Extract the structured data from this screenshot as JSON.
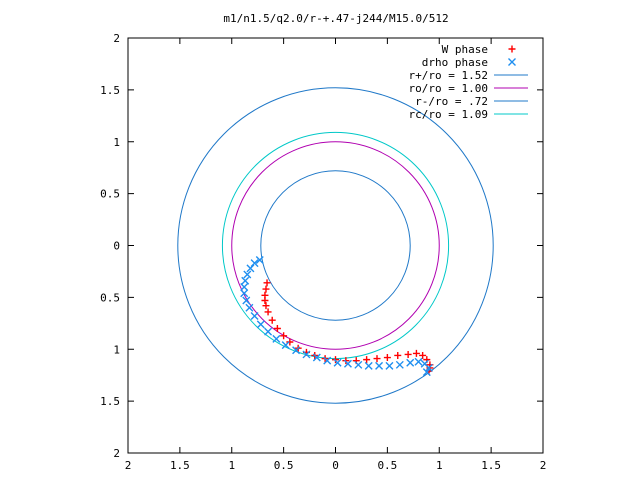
{
  "chart_data": {
    "type": "scatter",
    "title": "m1/n1.5/q2.0/r-+.47-j244/M15.0/512",
    "xlabel": "",
    "ylabel": "",
    "xlim": [
      -2,
      2
    ],
    "ylim": [
      -2,
      2
    ],
    "x_tick_values": [
      -2,
      -1.5,
      -1,
      -0.5,
      0,
      0.5,
      1,
      1.5,
      2
    ],
    "x_tick_labels": [
      "2",
      "1.5",
      "1",
      "0.5",
      "0",
      "0.5",
      "1",
      "1.5",
      "2"
    ],
    "y_tick_values": [
      2,
      1.5,
      1,
      0.5,
      0,
      -0.5,
      -1,
      -1.5,
      -2
    ],
    "y_tick_labels": [
      "2",
      "1.5",
      "1",
      "0.5",
      "0",
      "0.5",
      "1",
      "1.5",
      "2"
    ],
    "grid": false,
    "legend_position": "top-right",
    "circles": [
      {
        "name": "r+/ro = 1.52",
        "radius": 1.52,
        "color": "#1f78c8"
      },
      {
        "name": "ro/ro = 1.00",
        "radius": 1.0,
        "color": "#b000b0"
      },
      {
        "name": "r-/ro = .72",
        "radius": 0.72,
        "color": "#1f78c8"
      },
      {
        "name": "rc/ro = 1.09",
        "radius": 1.09,
        "color": "#00c8c8"
      }
    ],
    "series": [
      {
        "name": "W phase",
        "marker": "plus",
        "color": "#ff0000",
        "points": [
          [
            -0.66,
            -0.36
          ],
          [
            -0.67,
            -0.42
          ],
          [
            -0.68,
            -0.48
          ],
          [
            -0.68,
            -0.53
          ],
          [
            -0.67,
            -0.58
          ],
          [
            -0.65,
            -0.64
          ],
          [
            -0.61,
            -0.72
          ],
          [
            -0.56,
            -0.8
          ],
          [
            -0.5,
            -0.87
          ],
          [
            -0.44,
            -0.93
          ],
          [
            -0.36,
            -0.99
          ],
          [
            -0.28,
            -1.03
          ],
          [
            -0.2,
            -1.06
          ],
          [
            -0.1,
            -1.09
          ],
          [
            0.0,
            -1.1
          ],
          [
            0.1,
            -1.11
          ],
          [
            0.2,
            -1.11
          ],
          [
            0.3,
            -1.1
          ],
          [
            0.4,
            -1.09
          ],
          [
            0.5,
            -1.08
          ],
          [
            0.6,
            -1.06
          ],
          [
            0.7,
            -1.05
          ],
          [
            0.78,
            -1.04
          ],
          [
            0.84,
            -1.06
          ],
          [
            0.88,
            -1.1
          ],
          [
            0.91,
            -1.15
          ],
          [
            0.91,
            -1.18
          ],
          [
            0.9,
            -1.21
          ]
        ]
      },
      {
        "name": "drho phase",
        "marker": "cross",
        "color": "#1f8ff0",
        "points": [
          [
            -0.73,
            -0.14
          ],
          [
            -0.78,
            -0.17
          ],
          [
            -0.82,
            -0.22
          ],
          [
            -0.85,
            -0.28
          ],
          [
            -0.87,
            -0.34
          ],
          [
            -0.88,
            -0.4
          ],
          [
            -0.88,
            -0.46
          ],
          [
            -0.86,
            -0.53
          ],
          [
            -0.83,
            -0.6
          ],
          [
            -0.78,
            -0.68
          ],
          [
            -0.72,
            -0.76
          ],
          [
            -0.65,
            -0.83
          ],
          [
            -0.57,
            -0.9
          ],
          [
            -0.48,
            -0.96
          ],
          [
            -0.38,
            -1.01
          ],
          [
            -0.28,
            -1.05
          ],
          [
            -0.18,
            -1.08
          ],
          [
            -0.08,
            -1.11
          ],
          [
            0.02,
            -1.13
          ],
          [
            0.12,
            -1.14
          ],
          [
            0.22,
            -1.15
          ],
          [
            0.32,
            -1.16
          ],
          [
            0.42,
            -1.16
          ],
          [
            0.52,
            -1.16
          ],
          [
            0.62,
            -1.15
          ],
          [
            0.72,
            -1.13
          ],
          [
            0.8,
            -1.12
          ],
          [
            0.86,
            -1.14
          ],
          [
            0.9,
            -1.18
          ],
          [
            0.88,
            -1.22
          ]
        ]
      }
    ]
  }
}
